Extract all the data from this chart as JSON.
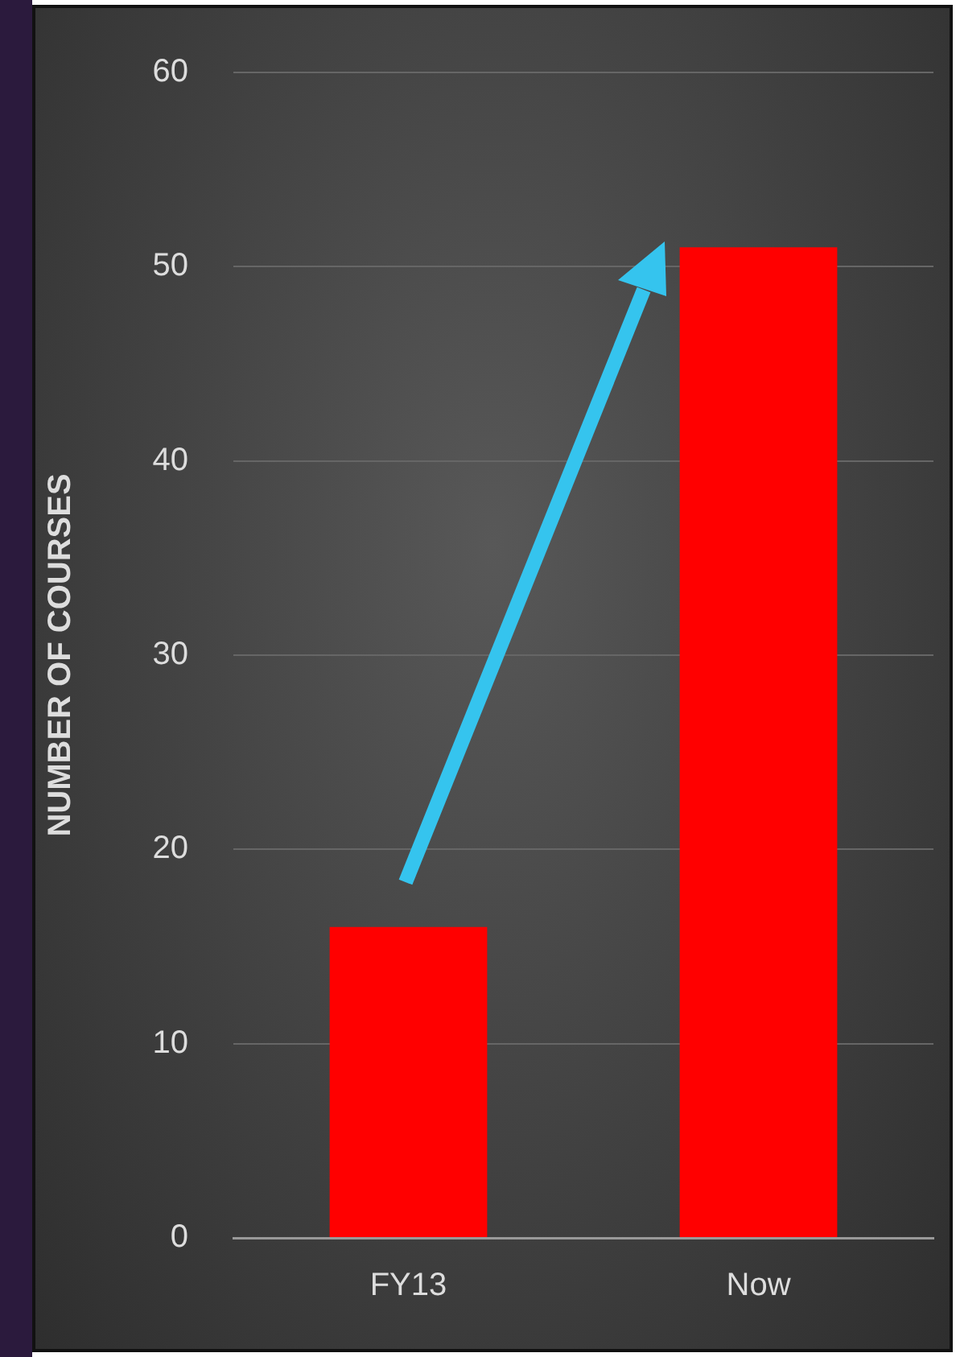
{
  "chart_data": {
    "type": "bar",
    "ylabel": "NUMBER OF COURSES",
    "categories": [
      "FY13",
      "Now"
    ],
    "values": [
      16,
      51
    ],
    "color": "#ff0000",
    "ylim": [
      0,
      60
    ],
    "yticks": [
      0,
      10,
      20,
      30,
      40,
      50,
      60
    ],
    "grid": "y",
    "legend": false
  }
}
